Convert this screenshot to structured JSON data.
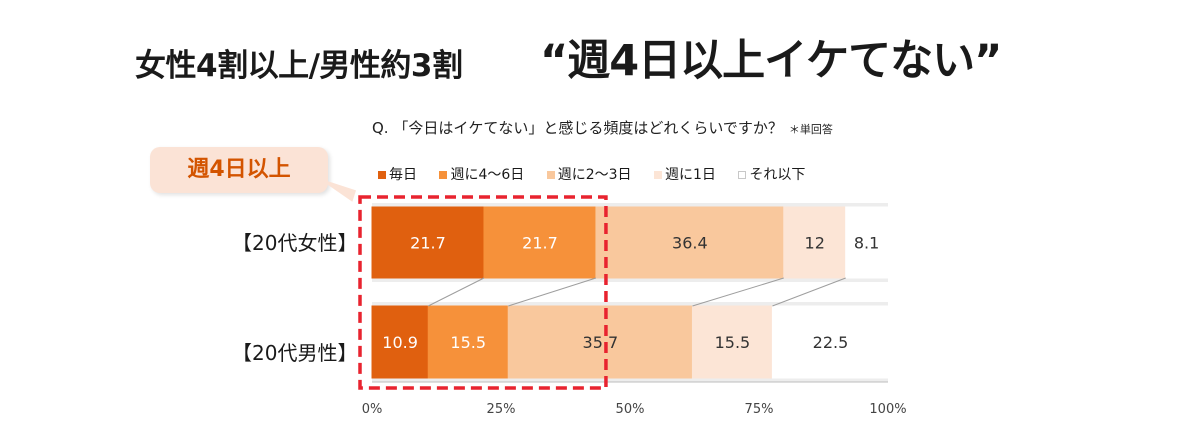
{
  "headline": {
    "sub": "女性4割以上/男性約3割",
    "main": "“週4日以上イケてない”"
  },
  "question": {
    "text": "Q. 「今日はイケてない」と感じる頻度はどれくらいですか？",
    "note": "＊単回答"
  },
  "callout": {
    "text": "週4日以上"
  },
  "colors": {
    "series": [
      "#e0600f",
      "#f6913a",
      "#f9c89d",
      "#fce5d6",
      "#ffffff"
    ],
    "highlight": "#e8232f",
    "connector": "#9e9e9e",
    "bar_bg": "#ededed"
  },
  "chart_data": {
    "type": "bar",
    "orientation": "horizontal",
    "stacked": true,
    "percent": true,
    "categories": [
      "【20代女性】",
      "【20代男性】"
    ],
    "series": [
      {
        "name": "毎日",
        "values": [
          21.7,
          10.9
        ]
      },
      {
        "name": "週に4～6日",
        "values": [
          21.7,
          15.5
        ]
      },
      {
        "name": "週に2～3日",
        "values": [
          36.4,
          35.7
        ]
      },
      {
        "name": "週に1日",
        "values": [
          12,
          15.5
        ]
      },
      {
        "name": "それ以下",
        "values": [
          8.1,
          22.5
        ]
      }
    ],
    "xlim": [
      0,
      100
    ],
    "xticks": [
      "0%",
      "25%",
      "50%",
      "75%",
      "100%"
    ],
    "legend": "top",
    "highlight_group": "週4日以上"
  }
}
